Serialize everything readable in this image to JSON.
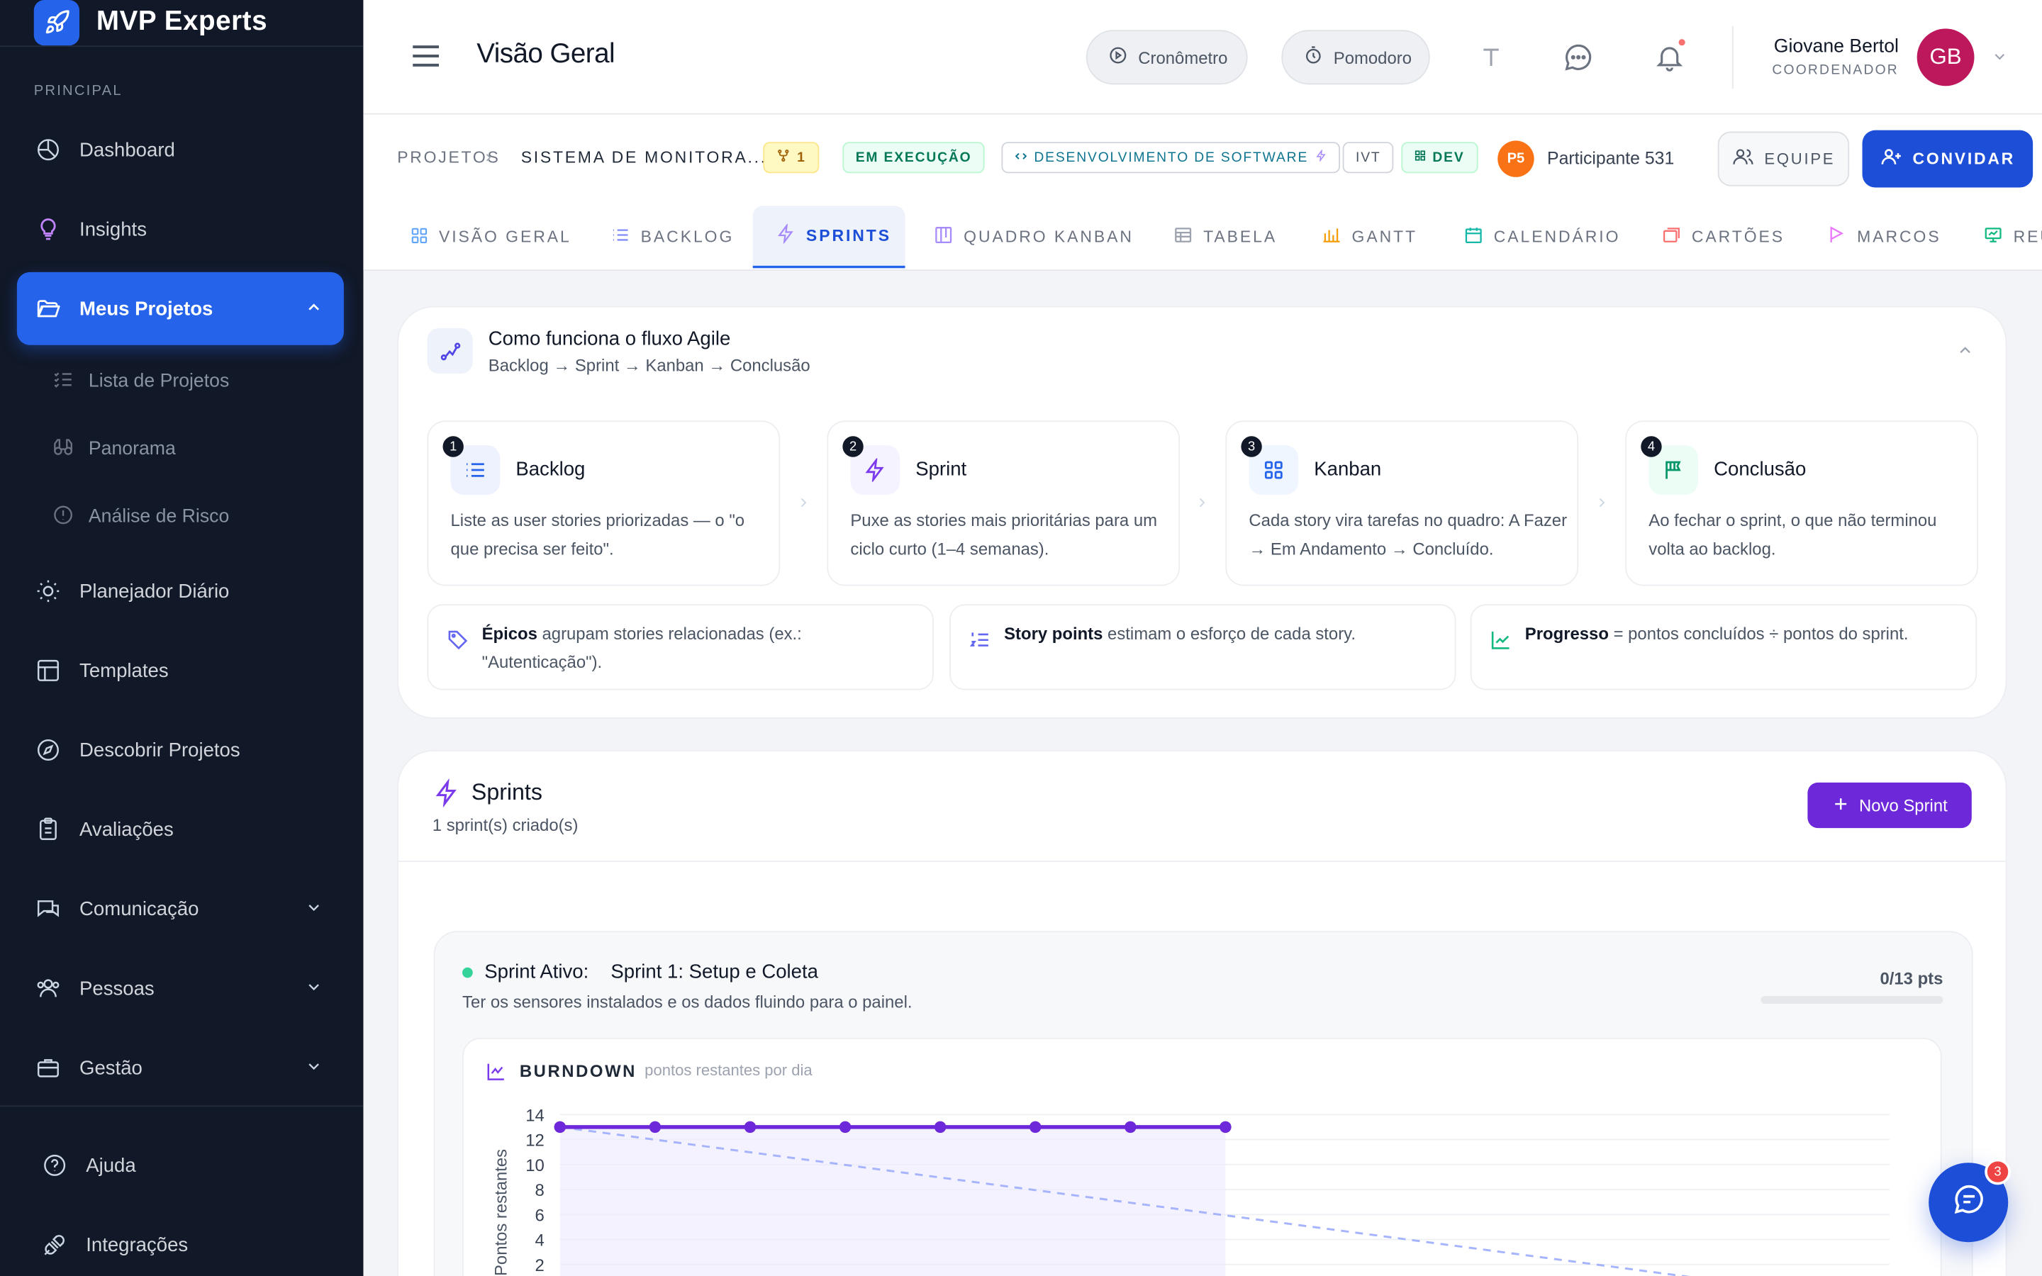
{
  "app": {
    "name": "MVP Experts",
    "accent": "#2563eb",
    "sidebar_bg": "#111827"
  },
  "sidebar": {
    "section_label": "PRINCIPAL",
    "items": [
      {
        "label": "Dashboard",
        "icon": "chart-pie-icon"
      },
      {
        "label": "Insights",
        "icon": "lightbulb-icon"
      },
      {
        "label": "Meus Projetos",
        "icon": "folder-open-icon",
        "active": true
      },
      {
        "label": "Planejador Diário",
        "icon": "sun-icon"
      },
      {
        "label": "Templates",
        "icon": "layout-icon"
      },
      {
        "label": "Descobrir Projetos",
        "icon": "compass-icon"
      },
      {
        "label": "Avaliações",
        "icon": "clipboard-icon"
      },
      {
        "label": "Comunicação",
        "icon": "chat-icon"
      },
      {
        "label": "Pessoas",
        "icon": "users-icon"
      },
      {
        "label": "Gestão",
        "icon": "briefcase-icon"
      }
    ],
    "subitems": [
      {
        "label": "Lista de Projetos",
        "icon": "list-check-icon"
      },
      {
        "label": "Panorama",
        "icon": "binoculars-icon"
      },
      {
        "label": "Análise de Risco",
        "icon": "alert-circle-icon"
      }
    ],
    "footer": [
      {
        "label": "Ajuda",
        "icon": "help-circle-icon"
      },
      {
        "label": "Integrações",
        "icon": "plug-icon"
      }
    ]
  },
  "header": {
    "title": "Visão Geral",
    "cronometro": "Cronômetro",
    "pomodoro": "Pomodoro",
    "user_name": "Giovane Bertol",
    "user_role": "COORDENADOR",
    "user_initials": "GB"
  },
  "project": {
    "crumb_root": "PROJETOS",
    "crumb_current": "SISTEMA DE MONITORA...",
    "fork_count": "1",
    "status": "EM EXECUÇÃO",
    "category": "DESENVOLVIMENTO DE SOFTWARE",
    "tag_ivt": "IVT",
    "tag_dev": "DEV",
    "participant_initials": "P5",
    "participant_name": "Participante 531",
    "team_label": "EQUIPE",
    "invite_label": "CONVIDAR"
  },
  "tabs": [
    {
      "label": "VISÃO GERAL",
      "icon": "grid-icon"
    },
    {
      "label": "BACKLOG",
      "icon": "list-icon"
    },
    {
      "label": "SPRINTS",
      "icon": "bolt-icon",
      "active": true
    },
    {
      "label": "QUADRO KANBAN",
      "icon": "kanban-icon"
    },
    {
      "label": "TABELA",
      "icon": "table-icon"
    },
    {
      "label": "GANTT",
      "icon": "bar-chart-icon"
    },
    {
      "label": "CALENDÁRIO",
      "icon": "calendar-icon"
    },
    {
      "label": "CARTÕES",
      "icon": "cards-icon"
    },
    {
      "label": "MARCOS",
      "icon": "flag-icon"
    },
    {
      "label": "REU",
      "icon": "presentation-icon"
    }
  ],
  "agile": {
    "title": "Como funciona o fluxo Agile",
    "subtitle": "Backlog → Sprint → Kanban → Conclusão",
    "steps": [
      {
        "num": "1",
        "title": "Backlog",
        "desc": "Liste as user stories priorizadas — o \"o que precisa ser feito\".",
        "icon": "list-icon",
        "color": "#2563eb"
      },
      {
        "num": "2",
        "title": "Sprint",
        "desc": "Puxe as stories mais prioritárias para um ciclo curto (1–4 semanas).",
        "icon": "bolt-icon",
        "color": "#7c3aed"
      },
      {
        "num": "3",
        "title": "Kanban",
        "desc": "Cada story vira tarefas no quadro: A Fazer → Em Andamento → Concluído.",
        "icon": "grid-icon",
        "color": "#2563eb"
      },
      {
        "num": "4",
        "title": "Conclusão",
        "desc": "Ao fechar o sprint, o que não terminou volta ao backlog.",
        "icon": "flag-icon",
        "color": "#059669"
      }
    ],
    "info": [
      {
        "bold": "Épicos",
        "text": " agrupam stories relacionadas (ex.: \"Autenticação\").",
        "icon": "tag-icon"
      },
      {
        "bold": "Story points",
        "text": " estimam o esforço de cada story.",
        "icon": "list-ordered-icon"
      },
      {
        "bold": "Progresso",
        "text": " = pontos concluídos ÷ pontos do sprint.",
        "icon": "trend-up-icon"
      }
    ]
  },
  "sprints": {
    "title": "Sprints",
    "count_text": "1 sprint(s) criado(s)",
    "new_button": "Novo Sprint",
    "active": {
      "label": "Sprint Ativo:",
      "name": "Sprint 1: Setup e Coleta",
      "goal": "Ter os sensores instalados e os dados fluindo para o painel.",
      "points": "0/13 pts",
      "progress": 0
    }
  },
  "chart_data": {
    "type": "line",
    "title": "BURNDOWN",
    "subtitle": "pontos restantes por dia",
    "ylabel": "Pontos restantes",
    "ylim": [
      0,
      14
    ],
    "yticks": [
      2,
      4,
      6,
      8,
      10,
      12,
      14
    ],
    "series": [
      {
        "values": [
          13,
          13,
          13,
          13,
          13,
          13,
          13,
          13
        ],
        "color": "#6d28d9"
      },
      {
        "values": [
          13,
          0
        ],
        "color": "#a5b4fc",
        "dashed": true
      }
    ]
  },
  "chat": {
    "badge": "3"
  }
}
